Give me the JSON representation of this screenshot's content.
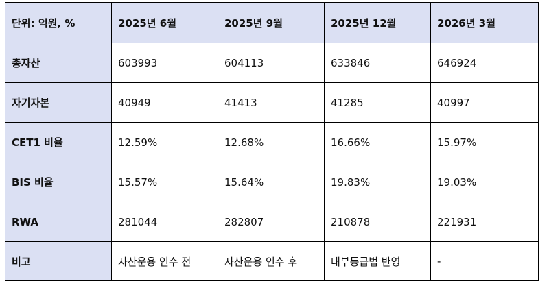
{
  "table": {
    "header": [
      "단위: 억원, %",
      "2025년 6월",
      "2025년 9월",
      "2025년 12월",
      "2026년 3월"
    ],
    "rows": [
      {
        "label": "총자산",
        "cells": [
          "603993",
          "604113",
          "633846",
          "646924"
        ]
      },
      {
        "label": "자기자본",
        "cells": [
          "40949",
          "41413",
          "41285",
          "40997"
        ]
      },
      {
        "label": "CET1 비율",
        "cells": [
          "12.59%",
          "12.68%",
          "16.66%",
          "15.97%"
        ]
      },
      {
        "label": "BIS 비율",
        "cells": [
          "15.57%",
          "15.64%",
          "19.83%",
          "19.03%"
        ]
      },
      {
        "label": "RWA",
        "cells": [
          "281044",
          "282807",
          "210878",
          "221931"
        ]
      },
      {
        "label": "비고",
        "cells": [
          "자산운용 인수 전",
          "자산운용 인수 후",
          "내부등급법 반영",
          "-"
        ]
      }
    ]
  },
  "colors": {
    "header_bg": "#dbe0f3",
    "border": "#000000"
  }
}
